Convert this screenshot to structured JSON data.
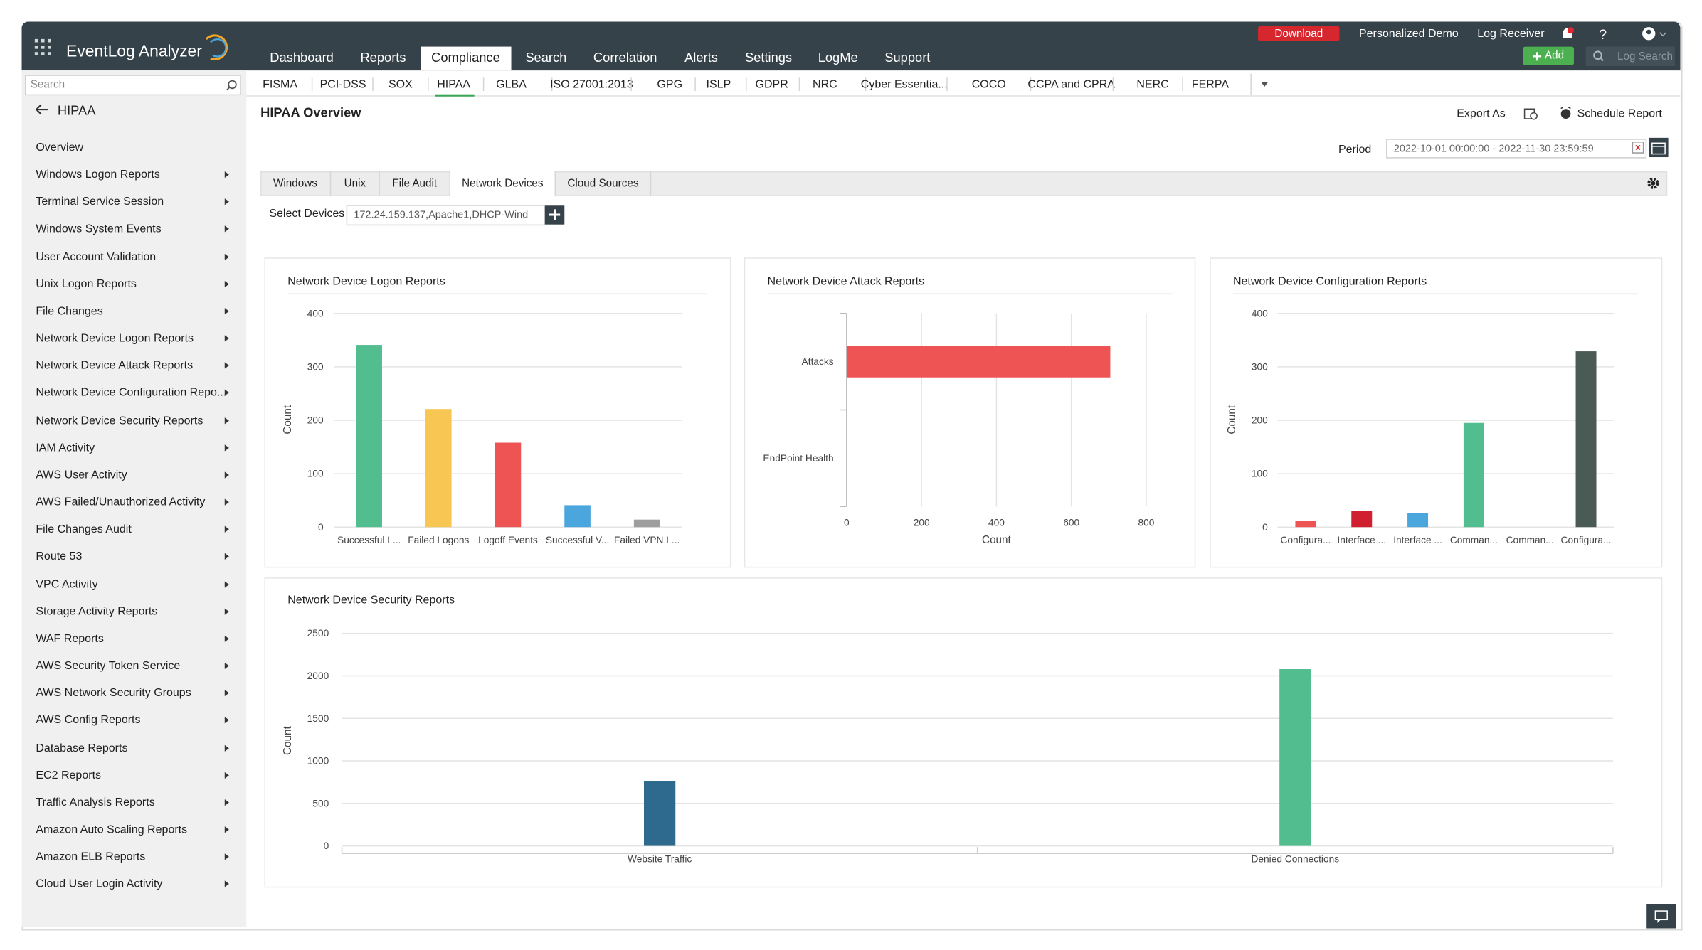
{
  "header": {
    "app_name": "EventLog Analyzer",
    "nav": [
      "Dashboard",
      "Reports",
      "Compliance",
      "Search",
      "Correlation",
      "Alerts",
      "Settings",
      "LogMe",
      "Support"
    ],
    "download": "Download",
    "personalized_demo": "Personalized Demo",
    "log_receiver": "Log Receiver",
    "help": "?",
    "add_button": "Add",
    "log_search": "Log Search"
  },
  "sidebar": {
    "search": "Search",
    "section": "HIPAA",
    "items": [
      "Overview",
      "Windows Logon Reports",
      "Terminal Service Session",
      "Windows System Events",
      "User Account Validation",
      "Unix Logon Reports",
      "File Changes",
      "Network Device Logon Reports",
      "Network Device Attack Reports",
      "Network Device Configuration Repo...",
      "Network Device Security Reports",
      "IAM Activity",
      "AWS User Activity",
      "AWS Failed/Unauthorized Activity",
      "File Changes Audit",
      "Route 53",
      "VPC Activity",
      "Storage Activity Reports",
      "WAF Reports",
      "AWS Security Token Service",
      "AWS Network Security Groups",
      "AWS Config Reports",
      "Database Reports",
      "EC2 Reports",
      "Traffic Analysis Reports",
      "Amazon Auto Scaling Reports",
      "Amazon ELB Reports",
      "Cloud User Login Activity"
    ]
  },
  "compliance_tabs": [
    "FISMA",
    "PCI-DSS",
    "SOX",
    "HIPAA",
    "GLBA",
    "ISO 27001:2013",
    "GPG",
    "ISLP",
    "GDPR",
    "NRC",
    "Cyber Essentia...",
    "COCO",
    "CCPA and CPRA",
    "NERC",
    "FERPA"
  ],
  "page": {
    "title": "HIPAA Overview",
    "export": "Export As",
    "schedule": "Schedule Report",
    "period_label": "Period",
    "period_value": "2022-10-01 00:00:00 - 2022-11-30 23:59:59",
    "device_tabs": [
      "Windows",
      "Unix",
      "File Audit",
      "Network Devices",
      "Cloud Sources"
    ],
    "select_devices_label": "Select Devices",
    "select_devices_value": "172.24.159.137,Apache1,DHCP-Wind"
  },
  "chart_data": [
    {
      "type": "bar",
      "title": "Network Device Logon Reports",
      "ylabel": "Count",
      "categories": [
        "Successful L...",
        "Failed Logons",
        "Logoff Events",
        "Successful V...",
        "Failed VPN L..."
      ],
      "values": [
        341,
        221,
        158,
        41,
        14
      ],
      "colors": [
        "#52bd8f",
        "#f8c753",
        "#ef5455",
        "#4aa6dd",
        "#9e9e9e"
      ],
      "ylim": [
        0,
        400
      ],
      "yticks": [
        0,
        100,
        200,
        300,
        400
      ],
      "grid": true
    },
    {
      "type": "bar",
      "orientation": "horizontal",
      "title": "Network Device Attack Reports",
      "xlabel": "Count",
      "categories": [
        "Attacks",
        "EndPoint Health"
      ],
      "values": [
        704,
        0
      ],
      "colors": [
        "#ef5455",
        "#ef5455"
      ],
      "xlim": [
        0,
        800
      ],
      "xticks": [
        0,
        200,
        400,
        600,
        800
      ],
      "grid": true
    },
    {
      "type": "bar",
      "title": "Network Device Configuration Reports",
      "ylabel": "Count",
      "categories": [
        "Configura...",
        "Interface ...",
        "Interface ...",
        "Comman...",
        "Comman...",
        "Configura..."
      ],
      "values": [
        12,
        30,
        26,
        195,
        0,
        329
      ],
      "colors": [
        "#ef5455",
        "#d0202f",
        "#4aa6dd",
        "#52bd8f",
        "#9e9e9e",
        "#4a5a55"
      ],
      "ylim": [
        0,
        400
      ],
      "yticks": [
        0,
        100,
        200,
        300,
        400
      ],
      "grid": true
    },
    {
      "type": "bar",
      "title": "Network Device Security Reports",
      "ylabel": "Count",
      "categories": [
        "Website Traffic",
        "Denied Connections"
      ],
      "values": [
        765,
        2079
      ],
      "colors": [
        "#2e6a8e",
        "#52bd8f"
      ],
      "ylim": [
        0,
        2500
      ],
      "yticks": [
        0,
        500,
        1000,
        1500,
        2000,
        2500
      ],
      "grid": true
    }
  ]
}
